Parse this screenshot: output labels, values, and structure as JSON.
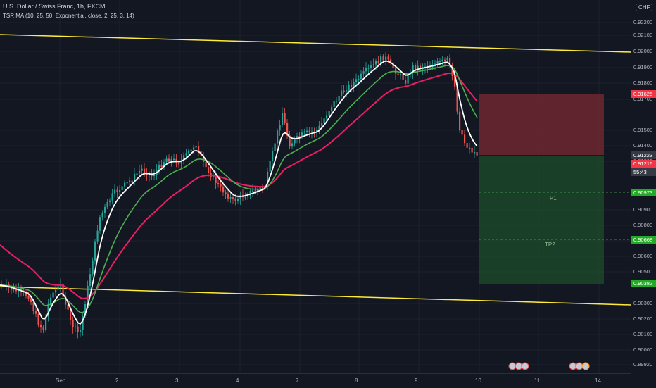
{
  "header": {
    "title": "U.S. Dollar / Swiss Franc, 1h, FXCM",
    "indicator": "TSR MA (10, 25, 50, Exponential, close, 2, 25, 3, 14)"
  },
  "currency": "CHF",
  "price_axis": {
    "labels": [
      "0.92200",
      "0.92100",
      "0.92000",
      "0.91900",
      "0.91800",
      "0.91700",
      "0.91500",
      "0.91400",
      "0.91300",
      "0.90900",
      "0.90800",
      "0.90700",
      "0.90600",
      "0.90500",
      "0.90300",
      "0.90200",
      "0.90100",
      "0.90000",
      "0.89920",
      "0.89820"
    ],
    "tags": {
      "stop": "0.91625",
      "entry": "0.91223",
      "last": "0.91216",
      "countdown": "55:43",
      "tp1": "0.90973",
      "tp2": "0.90668",
      "target": "0.90382"
    }
  },
  "time_axis": [
    "Sep",
    "2",
    "3",
    "4",
    "7",
    "8",
    "9",
    "10",
    "11",
    "14"
  ],
  "position": {
    "tp1_label": "TP1",
    "tp2_label": "TP2"
  },
  "colors": {
    "up": "#26a69a",
    "down": "#ef5350",
    "ema_fast": "#ffffff",
    "ema_mid": "#4caf50",
    "ema_slow": "#e91e63",
    "channel": "#ffeb3b",
    "stop_zone": "#7a2a33",
    "profit_zone": "#1e4d2b"
  }
}
